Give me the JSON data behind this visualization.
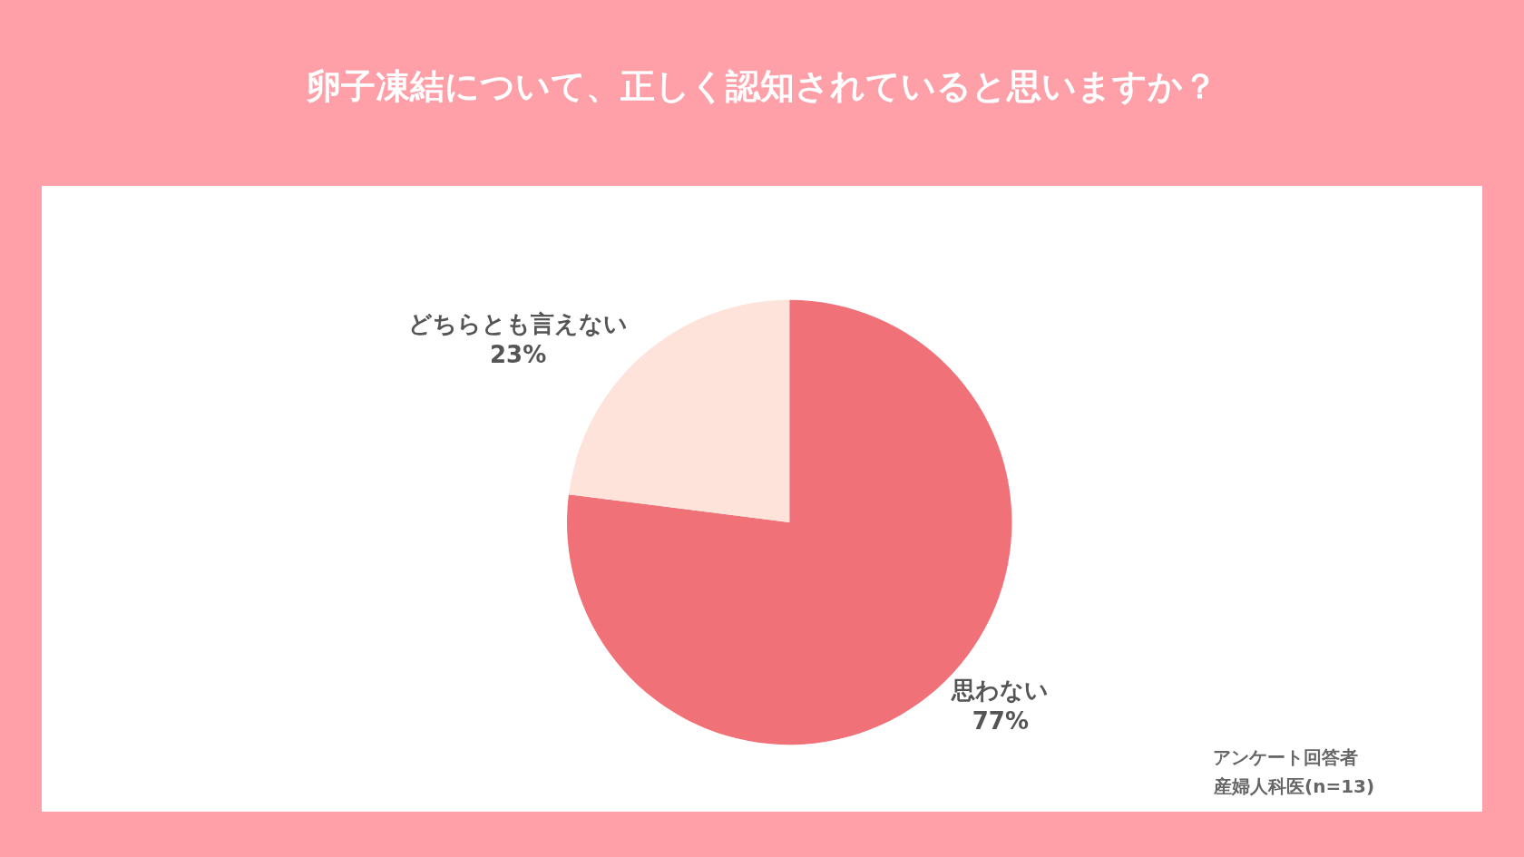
{
  "chart_data": {
    "type": "pie",
    "title": "卵子凍結について、正しく認知されていると思いますか？",
    "categories": [
      "思わない",
      "どちらとも言えない"
    ],
    "values": [
      77,
      23
    ],
    "colors": [
      "#f07178",
      "#fde3d9"
    ],
    "value_labels": [
      "77%",
      "23%"
    ],
    "annotations": [
      "アンケート回答者",
      "産婦人科医(n=13)"
    ]
  }
}
